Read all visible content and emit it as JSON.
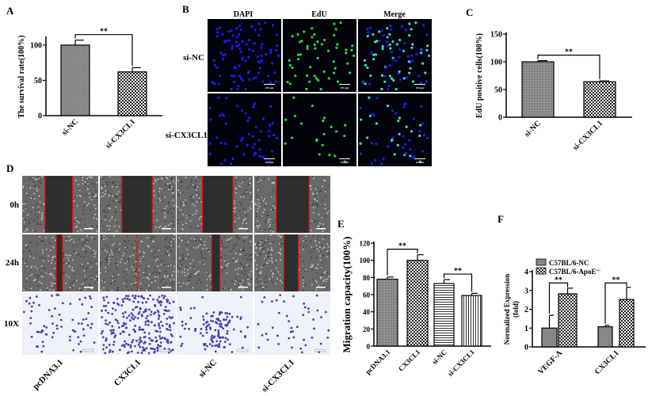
{
  "panels": {
    "A": {
      "label": "A"
    },
    "B": {
      "label": "B",
      "columns": [
        "DAPI",
        "EdU",
        "Merge"
      ],
      "rows": [
        "si-NC",
        "si-CX3CL1"
      ],
      "scale_bar": "100 μm"
    },
    "C": {
      "label": "C"
    },
    "D": {
      "label": "D",
      "rows": [
        "0h",
        "24h",
        "10X"
      ],
      "columns": [
        "pcDNA3.1",
        "CX3CL1",
        "si-NC",
        "si-CX3CL1"
      ]
    },
    "E": {
      "label": "E"
    },
    "F": {
      "label": "F"
    }
  },
  "colors": {
    "dapi": "#1a1aff",
    "edu": "#22dd33",
    "merge": "#33e0d0",
    "scratch_line": "#e01010",
    "crystal_violet": "#4a3fb0",
    "bar_gray": "#8c8c8c"
  },
  "chart_data": [
    {
      "panel": "A",
      "type": "bar",
      "ylabel": "The survival rate(100%)",
      "ylim": [
        0,
        110
      ],
      "yticks": [
        0,
        50,
        100
      ],
      "categories": [
        "si-NC",
        "si-CX3CL1"
      ],
      "values": [
        100,
        62
      ],
      "errors": [
        7,
        6
      ],
      "fills": [
        "gray",
        "checker"
      ],
      "significance": [
        {
          "pair": [
            0,
            1
          ],
          "label": "**"
        }
      ]
    },
    {
      "panel": "C",
      "type": "bar",
      "ylabel": "EdU positive cells(100%)",
      "ylim": [
        0,
        150
      ],
      "yticks": [
        0,
        50,
        100,
        150
      ],
      "categories": [
        "si-NC",
        "si-CX3CL1"
      ],
      "values": [
        100,
        64
      ],
      "errors": [
        2,
        1.5
      ],
      "fills": [
        "finedot",
        "checker"
      ],
      "significance": [
        {
          "pair": [
            0,
            1
          ],
          "label": "**"
        }
      ]
    },
    {
      "panel": "E",
      "type": "bar",
      "ylabel": "Migration capacity(100%)",
      "ylim": [
        0,
        120
      ],
      "yticks": [
        0,
        20,
        40,
        60,
        80,
        100,
        120
      ],
      "categories": [
        "pcDNA3.1",
        "CX3CL1",
        "si-NC",
        "si-CX3CL1"
      ],
      "values": [
        78,
        100,
        73,
        59
      ],
      "errors": [
        2.5,
        6.5,
        4.5,
        2.5
      ],
      "fills": [
        "finedot",
        "checker",
        "hlines",
        "vlines"
      ],
      "significance": [
        {
          "pair": [
            0,
            1
          ],
          "label": "**"
        },
        {
          "pair": [
            2,
            3
          ],
          "label": "**"
        }
      ]
    },
    {
      "panel": "F",
      "type": "bar",
      "ylabel": "Normalized Expression",
      "ylabel2": "(fold)",
      "ylim": [
        0,
        4
      ],
      "yticks": [
        0,
        1,
        2,
        3,
        4
      ],
      "categories": [
        "VEGF-A",
        "CX3CL1"
      ],
      "series": [
        {
          "name": "C57BL/6-NC",
          "values": [
            1.0,
            1.07
          ],
          "errors": [
            0.68,
            0.08
          ],
          "fill": "gray"
        },
        {
          "name": "C57BL/6-ApoE",
          "name_sup": "-/-",
          "values": [
            2.82,
            2.52
          ],
          "errors": [
            0.3,
            0.65
          ],
          "fill": "checker"
        }
      ],
      "legend": "top-left",
      "significance": [
        {
          "category": 0,
          "label": "**"
        },
        {
          "category": 1,
          "label": "**"
        }
      ]
    }
  ]
}
